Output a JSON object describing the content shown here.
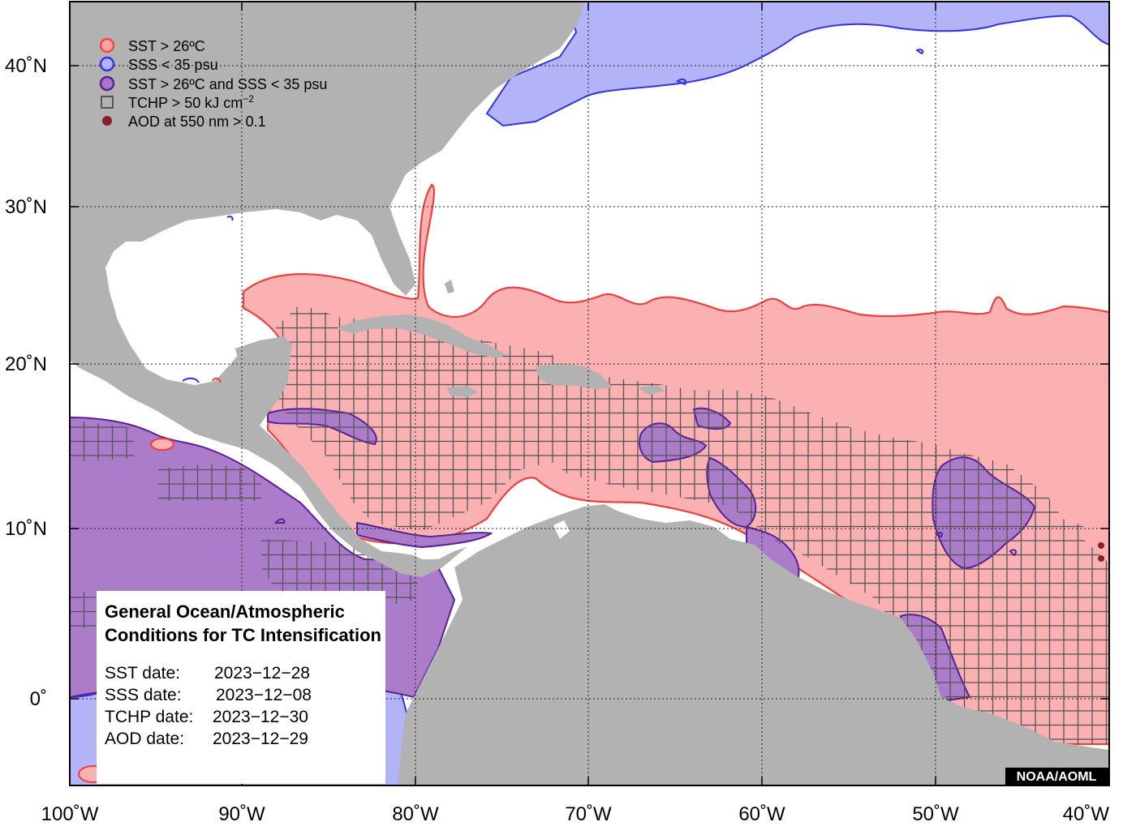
{
  "map": {
    "axes": {
      "x_ticks": [
        "100˚W",
        "90˚W",
        "80˚W",
        "70˚W",
        "60˚W",
        "50˚W",
        "40˚W"
      ],
      "y_ticks": [
        "40˚N",
        "30˚N",
        "20˚N",
        "10˚N",
        "0˚"
      ]
    },
    "legend": [
      {
        "label": "SST > 26ºC",
        "symbol": "circle",
        "fill": "#f9a3a3",
        "stroke": "#f04848"
      },
      {
        "label": "SSS < 35 psu",
        "symbol": "circle",
        "fill": "#b3b3f7",
        "stroke": "#3333e6"
      },
      {
        "label": "SST > 26ºC and SSS < 35 psu",
        "symbol": "circle",
        "fill": "#a875c9",
        "stroke": "#5a1f99"
      },
      {
        "label": "TCHP > 50 kJ cm",
        "superscript": "−2",
        "symbol": "square",
        "fill": "none",
        "stroke": "#555555"
      },
      {
        "label": "AOD at 550 nm > 0.1",
        "symbol": "dot",
        "fill": "#8b1e2b",
        "stroke": "#8b1e2b"
      }
    ],
    "info_box": {
      "title_line1": "General Ocean/Atmospheric",
      "title_line2": "Conditions for TC Intensification",
      "dates": [
        {
          "label": "SST date:",
          "value": "2023−12−28"
        },
        {
          "label": "SSS date:",
          "value": "2023−12−08"
        },
        {
          "label": "TCHP date:",
          "value": "2023−12−30"
        },
        {
          "label": "AOD date:",
          "value": "2023−12−29"
        }
      ]
    },
    "credit": "NOAA/AOML",
    "colors": {
      "land": "#b2b2b2",
      "ocean": "#ffffff",
      "sst": "#fbb1b1",
      "sst_edge": "#ec4040",
      "sss": "#b3b3f7",
      "sss_edge": "#3333e6",
      "both": "#ab7cc9",
      "both_edge": "#5a1f99",
      "tchp_grid": "#555555",
      "aod": "#8b1e2b"
    }
  }
}
